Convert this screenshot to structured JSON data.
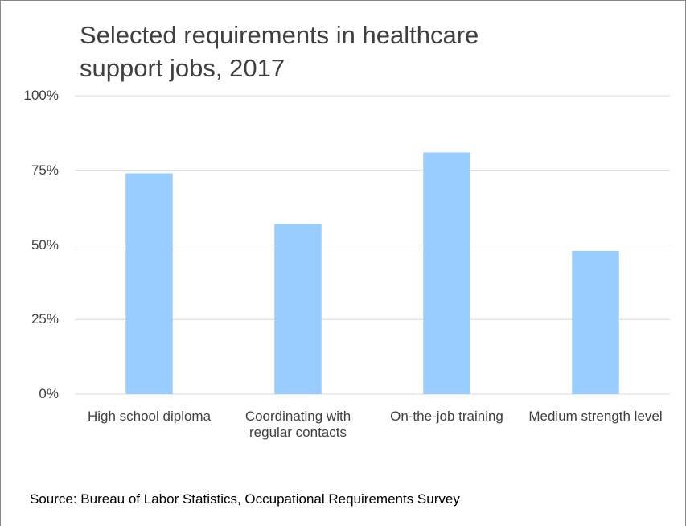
{
  "chart_data": {
    "type": "bar",
    "title": "Selected requirements in healthcare support jobs, 2017",
    "categories": [
      "High school diploma",
      "Coordinating with regular contacts",
      "On-the-job training",
      "Medium strength level"
    ],
    "values": [
      74,
      57,
      81,
      48
    ],
    "color": "#99ccff",
    "ylim": [
      0,
      100
    ],
    "yticks": [
      {
        "value": 0,
        "label": "0%"
      },
      {
        "value": 25,
        "label": "25%"
      },
      {
        "value": 50,
        "label": "50%"
      },
      {
        "value": 75,
        "label": "75%"
      },
      {
        "value": 100,
        "label": "100%"
      }
    ],
    "grid": true,
    "source": "Source: Bureau of Labor Statistics, Occupational Requirements Survey"
  }
}
